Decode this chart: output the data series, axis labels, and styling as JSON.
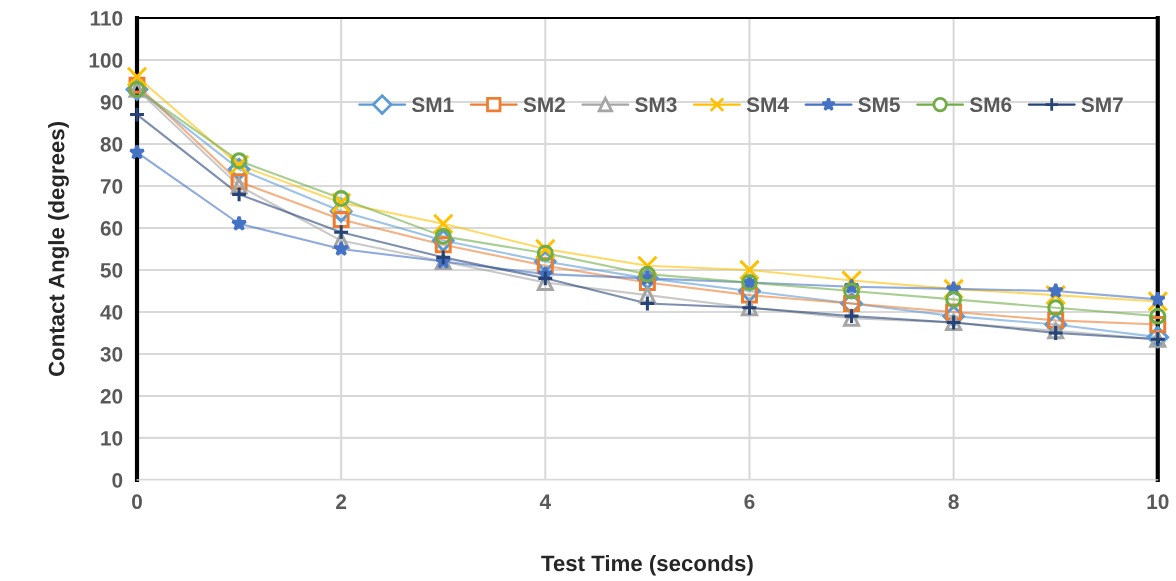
{
  "chart_data": {
    "type": "line",
    "xlabel": "Test Time (seconds)",
    "ylabel": "Contact Angle (degrees)",
    "x": [
      0,
      1,
      2,
      3,
      4,
      5,
      6,
      7,
      8,
      9,
      10
    ],
    "xlim": [
      0,
      10
    ],
    "xticks": [
      0,
      2,
      4,
      6,
      8,
      10
    ],
    "ylim": [
      0,
      110
    ],
    "yticks": [
      0,
      10,
      20,
      30,
      40,
      50,
      60,
      70,
      80,
      90,
      100,
      110
    ],
    "grid": true,
    "legend": "top right",
    "series": [
      {
        "name": "SM1",
        "color": "#5b9bd5",
        "marker": "diamond",
        "values": [
          93,
          74,
          64,
          57,
          52,
          48,
          45,
          42,
          39,
          37,
          34
        ]
      },
      {
        "name": "SM2",
        "color": "#ed7d31",
        "marker": "square",
        "values": [
          94,
          71,
          62,
          56,
          51,
          47,
          44,
          42,
          40,
          38,
          37
        ]
      },
      {
        "name": "SM3",
        "color": "#a5a5a5",
        "marker": "triangle",
        "values": [
          93,
          70,
          57,
          52,
          47,
          44,
          41,
          38.5,
          37.5,
          35.5,
          33.5
        ]
      },
      {
        "name": "SM4",
        "color": "#ffc000",
        "marker": "cross",
        "values": [
          96,
          75,
          66,
          61,
          55,
          51,
          50,
          47.5,
          45.5,
          44,
          42.5
        ]
      },
      {
        "name": "SM5",
        "color": "#4472c4",
        "marker": "star",
        "values": [
          78,
          61,
          55,
          52,
          49,
          48,
          47,
          46,
          45.5,
          45,
          43
        ]
      },
      {
        "name": "SM6",
        "color": "#70ad47",
        "marker": "circle",
        "values": [
          93,
          76,
          67,
          58,
          54,
          49,
          47,
          45,
          43,
          41,
          39
        ]
      },
      {
        "name": "SM7",
        "color": "#264478",
        "marker": "plus",
        "values": [
          87,
          68,
          59,
          53,
          48,
          42,
          41,
          39,
          37.5,
          35,
          33.5
        ]
      }
    ]
  }
}
